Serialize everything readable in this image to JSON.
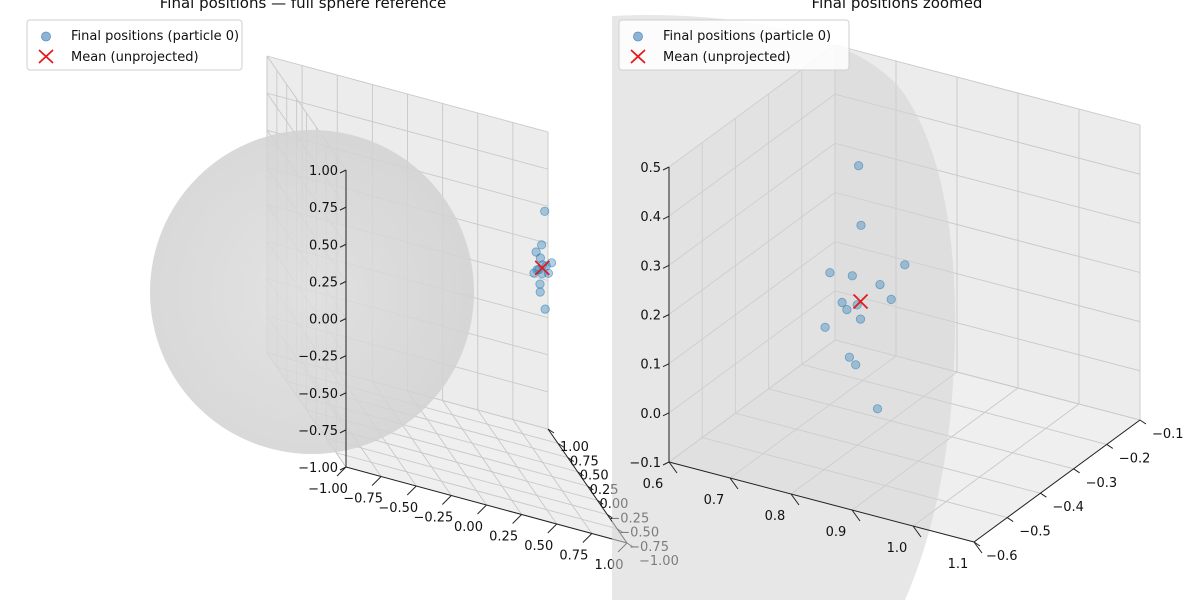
{
  "chart_data": [
    {
      "type": "scatter3d",
      "title": "Final positions — full sphere reference",
      "legend": {
        "placement": "upper-left",
        "entries": [
          "Final positions (particle 0)",
          "Mean (unprojected)"
        ]
      },
      "grid": true,
      "axes": {
        "x": {
          "range": [
            -1,
            1
          ],
          "ticks": [
            "−1.00",
            "−0.75",
            "−0.50",
            "−0.25",
            "0.00",
            "0.25",
            "0.50",
            "0.75",
            "1.00"
          ]
        },
        "y": {
          "range": [
            -1,
            1
          ],
          "ticks": [
            "−1.00",
            "−0.75",
            "−0.50",
            "−0.25",
            "0.00",
            "0.25",
            "0.50",
            "0.75",
            "1.00"
          ]
        },
        "z": {
          "range": [
            -1,
            1
          ],
          "ticks": [
            "−1.00",
            "−0.75",
            "−0.50",
            "−0.25",
            "0.00",
            "0.25",
            "0.50",
            "0.75",
            "1.00"
          ]
        }
      },
      "colors": {
        "points": "#1f77b4",
        "mean": "#e41a1c",
        "sphere": "#cccccc"
      },
      "points": [
        [
          0.85,
          -0.55,
          0.6
        ],
        [
          0.8,
          -0.45,
          0.4
        ],
        [
          0.78,
          -0.52,
          0.32
        ],
        [
          0.8,
          -0.48,
          0.3
        ],
        [
          0.82,
          -0.5,
          0.25
        ],
        [
          0.79,
          -0.48,
          0.22
        ],
        [
          0.81,
          -0.47,
          0.2
        ],
        [
          0.83,
          -0.44,
          0.27
        ],
        [
          0.84,
          -0.42,
          0.23
        ],
        [
          0.77,
          -0.46,
          0.22
        ],
        [
          0.86,
          -0.41,
          0.31
        ],
        [
          0.8,
          -0.49,
          0.12
        ],
        [
          0.79,
          -0.45,
          0.08
        ],
        [
          0.82,
          -0.43,
          -0.02
        ],
        [
          0.76,
          -0.5,
          0.18
        ]
      ],
      "mean": [
        0.81,
        -0.47,
        0.24
      ]
    },
    {
      "type": "scatter3d",
      "title": "Final positions zoomed",
      "legend": {
        "placement": "upper-left",
        "entries": [
          "Final positions (particle 0)",
          "Mean (unprojected)"
        ]
      },
      "grid": true,
      "axes": {
        "x": {
          "range": [
            0.55,
            1.12
          ],
          "ticks": [
            "0.6",
            "0.7",
            "0.8",
            "0.9",
            "1.0",
            "1.1"
          ]
        },
        "y": {
          "range": [
            -0.65,
            -0.08
          ],
          "ticks": [
            "−0.6",
            "−0.5",
            "−0.4",
            "−0.3",
            "−0.2",
            "−0.1"
          ]
        },
        "z": {
          "range": [
            -0.12,
            0.55
          ],
          "ticks": [
            "−0.1",
            "0.0",
            "0.1",
            "0.2",
            "0.3",
            "0.4",
            "0.5"
          ]
        }
      },
      "colors": {
        "points": "#1f77b4",
        "mean": "#e41a1c",
        "sphere": "#cccccc"
      },
      "points": [
        [
          0.85,
          -0.55,
          0.6
        ],
        [
          0.8,
          -0.45,
          0.4
        ],
        [
          0.78,
          -0.52,
          0.32
        ],
        [
          0.8,
          -0.48,
          0.3
        ],
        [
          0.82,
          -0.5,
          0.25
        ],
        [
          0.79,
          -0.48,
          0.22
        ],
        [
          0.81,
          -0.47,
          0.2
        ],
        [
          0.83,
          -0.44,
          0.27
        ],
        [
          0.84,
          -0.42,
          0.23
        ],
        [
          0.77,
          -0.46,
          0.22
        ],
        [
          0.86,
          -0.41,
          0.31
        ],
        [
          0.8,
          -0.49,
          0.12
        ],
        [
          0.79,
          -0.45,
          0.08
        ],
        [
          0.82,
          -0.43,
          -0.02
        ],
        [
          0.76,
          -0.5,
          0.18
        ]
      ],
      "mean": [
        0.81,
        -0.47,
        0.24
      ]
    }
  ]
}
